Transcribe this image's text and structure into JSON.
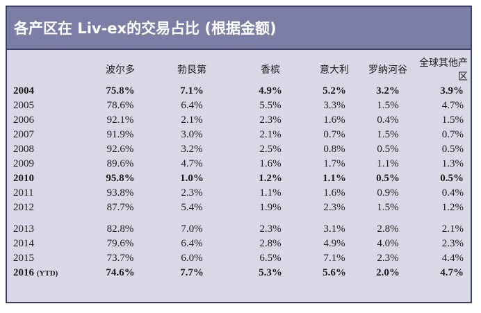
{
  "title": "各产区在 Liv-ex的交易占比 (根据金额)",
  "columns": [
    "",
    "波尔多",
    "勃艮第",
    "香槟",
    "意大利",
    "罗纳河谷",
    "全球其他产区"
  ],
  "rows": [
    {
      "year": "2004",
      "bold": true,
      "values": [
        "75.8%",
        "7.1%",
        "4.9%",
        "5.2%",
        "3.2%",
        "3.9%"
      ]
    },
    {
      "year": "2005",
      "bold": false,
      "values": [
        "78.6%",
        "6.4%",
        "5.5%",
        "3.3%",
        "1.5%",
        "4.7%"
      ]
    },
    {
      "year": "2006",
      "bold": false,
      "values": [
        "92.1%",
        "2.1%",
        "2.3%",
        "1.6%",
        "0.4%",
        "1.5%"
      ]
    },
    {
      "year": "2007",
      "bold": false,
      "values": [
        "91.9%",
        "3.0%",
        "2.1%",
        "0.7%",
        "1.5%",
        "0.7%"
      ]
    },
    {
      "year": "2008",
      "bold": false,
      "values": [
        "92.6%",
        "3.2%",
        "2.5%",
        "0.8%",
        "0.5%",
        "0.5%"
      ]
    },
    {
      "year": "2009",
      "bold": false,
      "values": [
        "89.6%",
        "4.7%",
        "1.6%",
        "1.7%",
        "1.1%",
        "1.3%"
      ]
    },
    {
      "year": "2010",
      "bold": true,
      "values": [
        "95.8%",
        "1.0%",
        "1.2%",
        "1.1%",
        "0.5%",
        "0.5%"
      ]
    },
    {
      "year": "2011",
      "bold": false,
      "values": [
        "93.8%",
        "2.3%",
        "1.1%",
        "1.6%",
        "0.9%",
        "0.4%"
      ]
    },
    {
      "year": "2012",
      "bold": false,
      "values": [
        "87.7%",
        "5.4%",
        "1.9%",
        "2.3%",
        "1.5%",
        "1.2%"
      ]
    },
    {
      "year": "2013",
      "bold": false,
      "values": [
        "82.8%",
        "7.0%",
        "2.3%",
        "3.1%",
        "2.8%",
        "2.1%"
      ]
    },
    {
      "year": "2014",
      "bold": false,
      "values": [
        "79.6%",
        "6.4%",
        "2.8%",
        "4.9%",
        "4.0%",
        "2.3%"
      ]
    },
    {
      "year": "2015",
      "bold": false,
      "values": [
        "73.7%",
        "6.0%",
        "6.5%",
        "7.1%",
        "2.3%",
        "4.4%"
      ]
    },
    {
      "year": "2016",
      "suffix": "(YTD)",
      "bold": true,
      "values": [
        "74.6%",
        "7.7%",
        "5.3%",
        "5.6%",
        "2.0%",
        "4.7%"
      ]
    }
  ]
}
